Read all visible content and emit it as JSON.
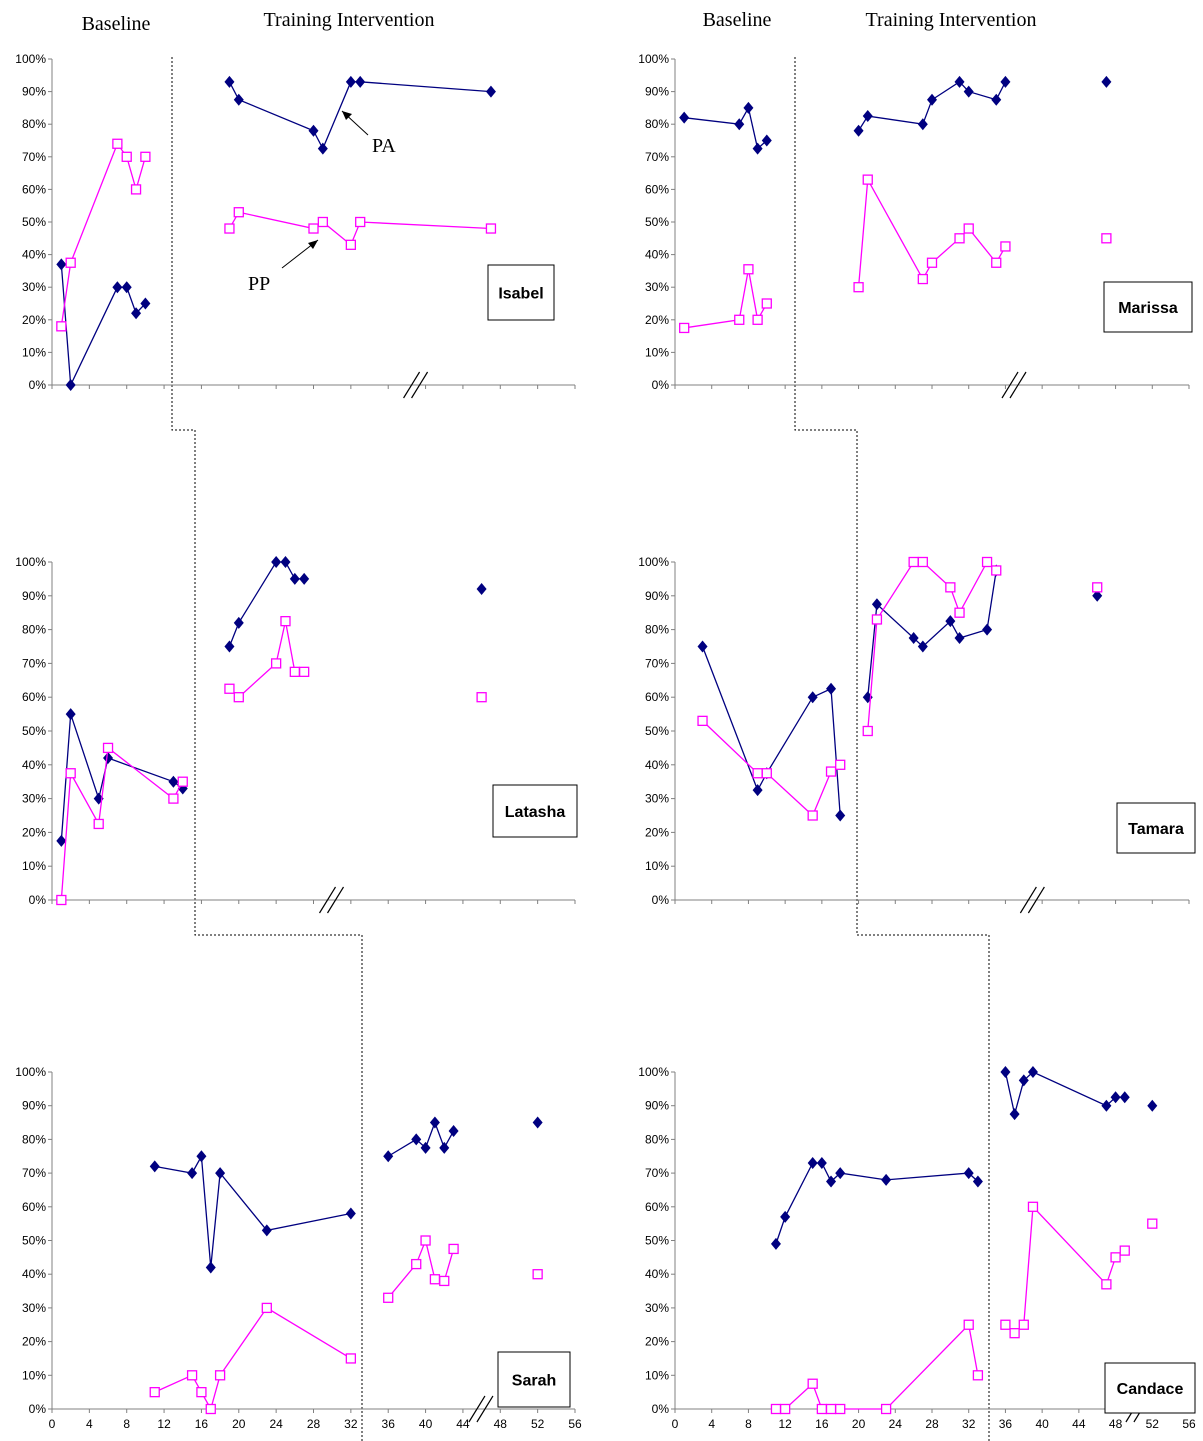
{
  "header": {
    "left_baseline": "Baseline",
    "left_training": "Training Intervention",
    "right_baseline": "Baseline",
    "right_training": "Training Intervention"
  },
  "annotations": {
    "pa": "PA",
    "pp": "PP"
  },
  "colors": {
    "pa": "#000080",
    "pp": "#ff00ff",
    "axis": "#808080",
    "phase_line": "#000000"
  },
  "chart_data": [
    {
      "type": "line",
      "name": "Isabel",
      "ylim": [
        0,
        1
      ],
      "xlim": [
        0,
        56
      ],
      "y_ticks": [
        "0%",
        "10%",
        "20%",
        "30%",
        "40%",
        "50%",
        "60%",
        "70%",
        "80%",
        "90%",
        "100%"
      ],
      "x_ticks": [],
      "series": [
        {
          "name": "PA",
          "points": [
            [
              1,
              0.37
            ],
            [
              2,
              0.0
            ],
            [
              7,
              0.3
            ],
            [
              8,
              0.3
            ],
            [
              9,
              0.22
            ],
            [
              10,
              0.25
            ],
            [
              19,
              0.93
            ],
            [
              20,
              0.875
            ],
            [
              28,
              0.78
            ],
            [
              29,
              0.725
            ],
            [
              32,
              0.93
            ],
            [
              33,
              0.93
            ],
            [
              47,
              0.9
            ]
          ],
          "breaks": [
            [
              5,
              6
            ],
            [
              12,
              13
            ]
          ]
        },
        {
          "name": "PP",
          "points": [
            [
              1,
              0.18
            ],
            [
              2,
              0.375
            ],
            [
              7,
              0.74
            ],
            [
              8,
              0.7
            ],
            [
              9,
              0.6
            ],
            [
              10,
              0.7
            ],
            [
              19,
              0.48
            ],
            [
              20,
              0.53
            ],
            [
              28,
              0.48
            ],
            [
              29,
              0.5
            ],
            [
              32,
              0.43
            ],
            [
              33,
              0.5
            ],
            [
              47,
              0.48
            ]
          ],
          "breaks": [
            [
              5,
              6
            ],
            [
              12,
              13
            ]
          ]
        }
      ]
    },
    {
      "type": "line",
      "name": "Marissa",
      "ylim": [
        0,
        1
      ],
      "xlim": [
        0,
        56
      ],
      "y_ticks": [
        "0%",
        "10%",
        "20%",
        "30%",
        "40%",
        "50%",
        "60%",
        "70%",
        "80%",
        "90%",
        "100%"
      ],
      "x_ticks": [],
      "series": [
        {
          "name": "PA",
          "points": [
            [
              1,
              0.82
            ],
            [
              7,
              0.8
            ],
            [
              8,
              0.85
            ],
            [
              9,
              0.725
            ],
            [
              10,
              0.75
            ],
            [
              20,
              0.78
            ],
            [
              21,
              0.825
            ],
            [
              27,
              0.8
            ],
            [
              28,
              0.875
            ],
            [
              31,
              0.93
            ],
            [
              32,
              0.9
            ],
            [
              35,
              0.875
            ],
            [
              36,
              0.93
            ],
            [
              47,
              0.93
            ]
          ],
          "breaks": [
            [
              4,
              5
            ],
            [
              12,
              13
            ]
          ]
        },
        {
          "name": "PP",
          "points": [
            [
              1,
              0.175
            ],
            [
              7,
              0.2
            ],
            [
              8,
              0.355
            ],
            [
              9,
              0.2
            ],
            [
              10,
              0.25
            ],
            [
              20,
              0.3
            ],
            [
              21,
              0.63
            ],
            [
              27,
              0.325
            ],
            [
              28,
              0.375
            ],
            [
              31,
              0.45
            ],
            [
              32,
              0.48
            ],
            [
              35,
              0.375
            ],
            [
              36,
              0.425
            ],
            [
              47,
              0.45
            ]
          ],
          "breaks": [
            [
              4,
              5
            ],
            [
              12,
              13
            ]
          ]
        }
      ]
    },
    {
      "type": "line",
      "name": "Latasha",
      "ylim": [
        0,
        1
      ],
      "xlim": [
        0,
        56
      ],
      "y_ticks": [
        "0%",
        "10%",
        "20%",
        "30%",
        "40%",
        "50%",
        "60%",
        "70%",
        "80%",
        "90%",
        "100%"
      ],
      "x_ticks": [],
      "series": [
        {
          "name": "PA",
          "points": [
            [
              1,
              0.175
            ],
            [
              2,
              0.55
            ],
            [
              5,
              0.3
            ],
            [
              6,
              0.42
            ],
            [
              13,
              0.35
            ],
            [
              14,
              0.33
            ],
            [
              19,
              0.75
            ],
            [
              20,
              0.82
            ],
            [
              24,
              1.0
            ],
            [
              25,
              1.0
            ],
            [
              26,
              0.95
            ],
            [
              27,
              0.95
            ],
            [
              46,
              0.92
            ]
          ],
          "breaks": [
            [
              5,
              6
            ],
            [
              11,
              12
            ]
          ]
        },
        {
          "name": "PP",
          "points": [
            [
              1,
              0.0
            ],
            [
              2,
              0.375
            ],
            [
              5,
              0.225
            ],
            [
              6,
              0.45
            ],
            [
              13,
              0.3
            ],
            [
              14,
              0.35
            ],
            [
              19,
              0.625
            ],
            [
              20,
              0.6
            ],
            [
              24,
              0.7
            ],
            [
              25,
              0.825
            ],
            [
              26,
              0.675
            ],
            [
              27,
              0.675
            ],
            [
              46,
              0.6
            ]
          ],
          "breaks": [
            [
              5,
              6
            ],
            [
              11,
              12
            ]
          ]
        }
      ]
    },
    {
      "type": "line",
      "name": "Tamara",
      "ylim": [
        0,
        1
      ],
      "xlim": [
        0,
        56
      ],
      "y_ticks": [
        "0%",
        "10%",
        "20%",
        "30%",
        "40%",
        "50%",
        "60%",
        "70%",
        "80%",
        "90%",
        "100%"
      ],
      "x_ticks": [],
      "series": [
        {
          "name": "PA",
          "points": [
            [
              3,
              0.75
            ],
            [
              9,
              0.325
            ],
            [
              10,
              0.375
            ],
            [
              15,
              0.6
            ],
            [
              17,
              0.625
            ],
            [
              18,
              0.25
            ],
            [
              21,
              0.6
            ],
            [
              22,
              0.875
            ],
            [
              26,
              0.775
            ],
            [
              27,
              0.75
            ],
            [
              30,
              0.825
            ],
            [
              31,
              0.775
            ],
            [
              34,
              0.8
            ],
            [
              35,
              0.975
            ],
            [
              46,
              0.9
            ]
          ],
          "breaks": [
            [
              5,
              6
            ],
            [
              13,
              14
            ]
          ]
        },
        {
          "name": "PP",
          "points": [
            [
              3,
              0.53
            ],
            [
              9,
              0.375
            ],
            [
              10,
              0.375
            ],
            [
              15,
              0.25
            ],
            [
              17,
              0.38
            ],
            [
              18,
              0.4
            ],
            [
              21,
              0.5
            ],
            [
              22,
              0.83
            ],
            [
              26,
              1.0
            ],
            [
              27,
              1.0
            ],
            [
              30,
              0.925
            ],
            [
              31,
              0.85
            ],
            [
              34,
              1.0
            ],
            [
              35,
              0.975
            ],
            [
              46,
              0.925
            ]
          ],
          "breaks": [
            [
              5,
              6
            ],
            [
              13,
              14
            ]
          ]
        }
      ]
    },
    {
      "type": "line",
      "name": "Sarah",
      "ylim": [
        0,
        1
      ],
      "xlim": [
        0,
        56
      ],
      "y_ticks": [
        "0%",
        "10%",
        "20%",
        "30%",
        "40%",
        "50%",
        "60%",
        "70%",
        "80%",
        "90%",
        "100%"
      ],
      "x_ticks": [
        "0",
        "4",
        "8",
        "12",
        "16",
        "20",
        "24",
        "28",
        "32",
        "36",
        "40",
        "44",
        "48",
        "52",
        "56"
      ],
      "series": [
        {
          "name": "PA",
          "points": [
            [
              11,
              0.72
            ],
            [
              15,
              0.7
            ],
            [
              16,
              0.75
            ],
            [
              17,
              0.42
            ],
            [
              18,
              0.7
            ],
            [
              23,
              0.53
            ],
            [
              32,
              0.58
            ],
            [
              36,
              0.75
            ],
            [
              39,
              0.8
            ],
            [
              40,
              0.775
            ],
            [
              41,
              0.85
            ],
            [
              42,
              0.775
            ],
            [
              43,
              0.825
            ],
            [
              52,
              0.85
            ]
          ],
          "breaks": [
            [
              6,
              7
            ],
            [
              12,
              13
            ]
          ]
        },
        {
          "name": "PP",
          "points": [
            [
              11,
              0.05
            ],
            [
              15,
              0.1
            ],
            [
              16,
              0.05
            ],
            [
              17,
              0.0
            ],
            [
              18,
              0.1
            ],
            [
              23,
              0.3
            ],
            [
              32,
              0.15
            ],
            [
              36,
              0.33
            ],
            [
              39,
              0.43
            ],
            [
              40,
              0.5
            ],
            [
              41,
              0.385
            ],
            [
              42,
              0.38
            ],
            [
              43,
              0.475
            ],
            [
              52,
              0.4
            ]
          ],
          "breaks": [
            [
              6,
              7
            ],
            [
              12,
              13
            ]
          ]
        }
      ]
    },
    {
      "type": "line",
      "name": "Candace",
      "ylim": [
        0,
        1
      ],
      "xlim": [
        0,
        56
      ],
      "y_ticks": [
        "0%",
        "10%",
        "20%",
        "30%",
        "40%",
        "50%",
        "60%",
        "70%",
        "80%",
        "90%",
        "100%"
      ],
      "x_ticks": [
        "0",
        "4",
        "8",
        "12",
        "16",
        "20",
        "24",
        "28",
        "32",
        "36",
        "40",
        "44",
        "48",
        "52",
        "56"
      ],
      "series": [
        {
          "name": "PA",
          "points": [
            [
              11,
              0.49
            ],
            [
              12,
              0.57
            ],
            [
              15,
              0.73
            ],
            [
              16,
              0.73
            ],
            [
              17,
              0.675
            ],
            [
              18,
              0.7
            ],
            [
              23,
              0.68
            ],
            [
              32,
              0.7
            ],
            [
              33,
              0.675
            ],
            [
              36,
              1.0
            ],
            [
              37,
              0.875
            ],
            [
              38,
              0.975
            ],
            [
              39,
              1.0
            ],
            [
              47,
              0.9
            ],
            [
              48,
              0.925
            ],
            [
              49,
              0.925
            ],
            [
              52,
              0.9
            ]
          ],
          "breaks": [
            [
              8,
              9
            ],
            [
              15,
              16
            ]
          ]
        },
        {
          "name": "PP",
          "points": [
            [
              11,
              0.0
            ],
            [
              12,
              0.0
            ],
            [
              15,
              0.075
            ],
            [
              16,
              0.0
            ],
            [
              17,
              0.0
            ],
            [
              18,
              0.0
            ],
            [
              23,
              0.0
            ],
            [
              32,
              0.25
            ],
            [
              33,
              0.1
            ],
            [
              36,
              0.25
            ],
            [
              37,
              0.225
            ],
            [
              38,
              0.25
            ],
            [
              39,
              0.6
            ],
            [
              47,
              0.37
            ],
            [
              48,
              0.45
            ],
            [
              49,
              0.47
            ],
            [
              52,
              0.55
            ]
          ],
          "breaks": [
            [
              8,
              9
            ],
            [
              15,
              16
            ]
          ]
        }
      ]
    }
  ]
}
